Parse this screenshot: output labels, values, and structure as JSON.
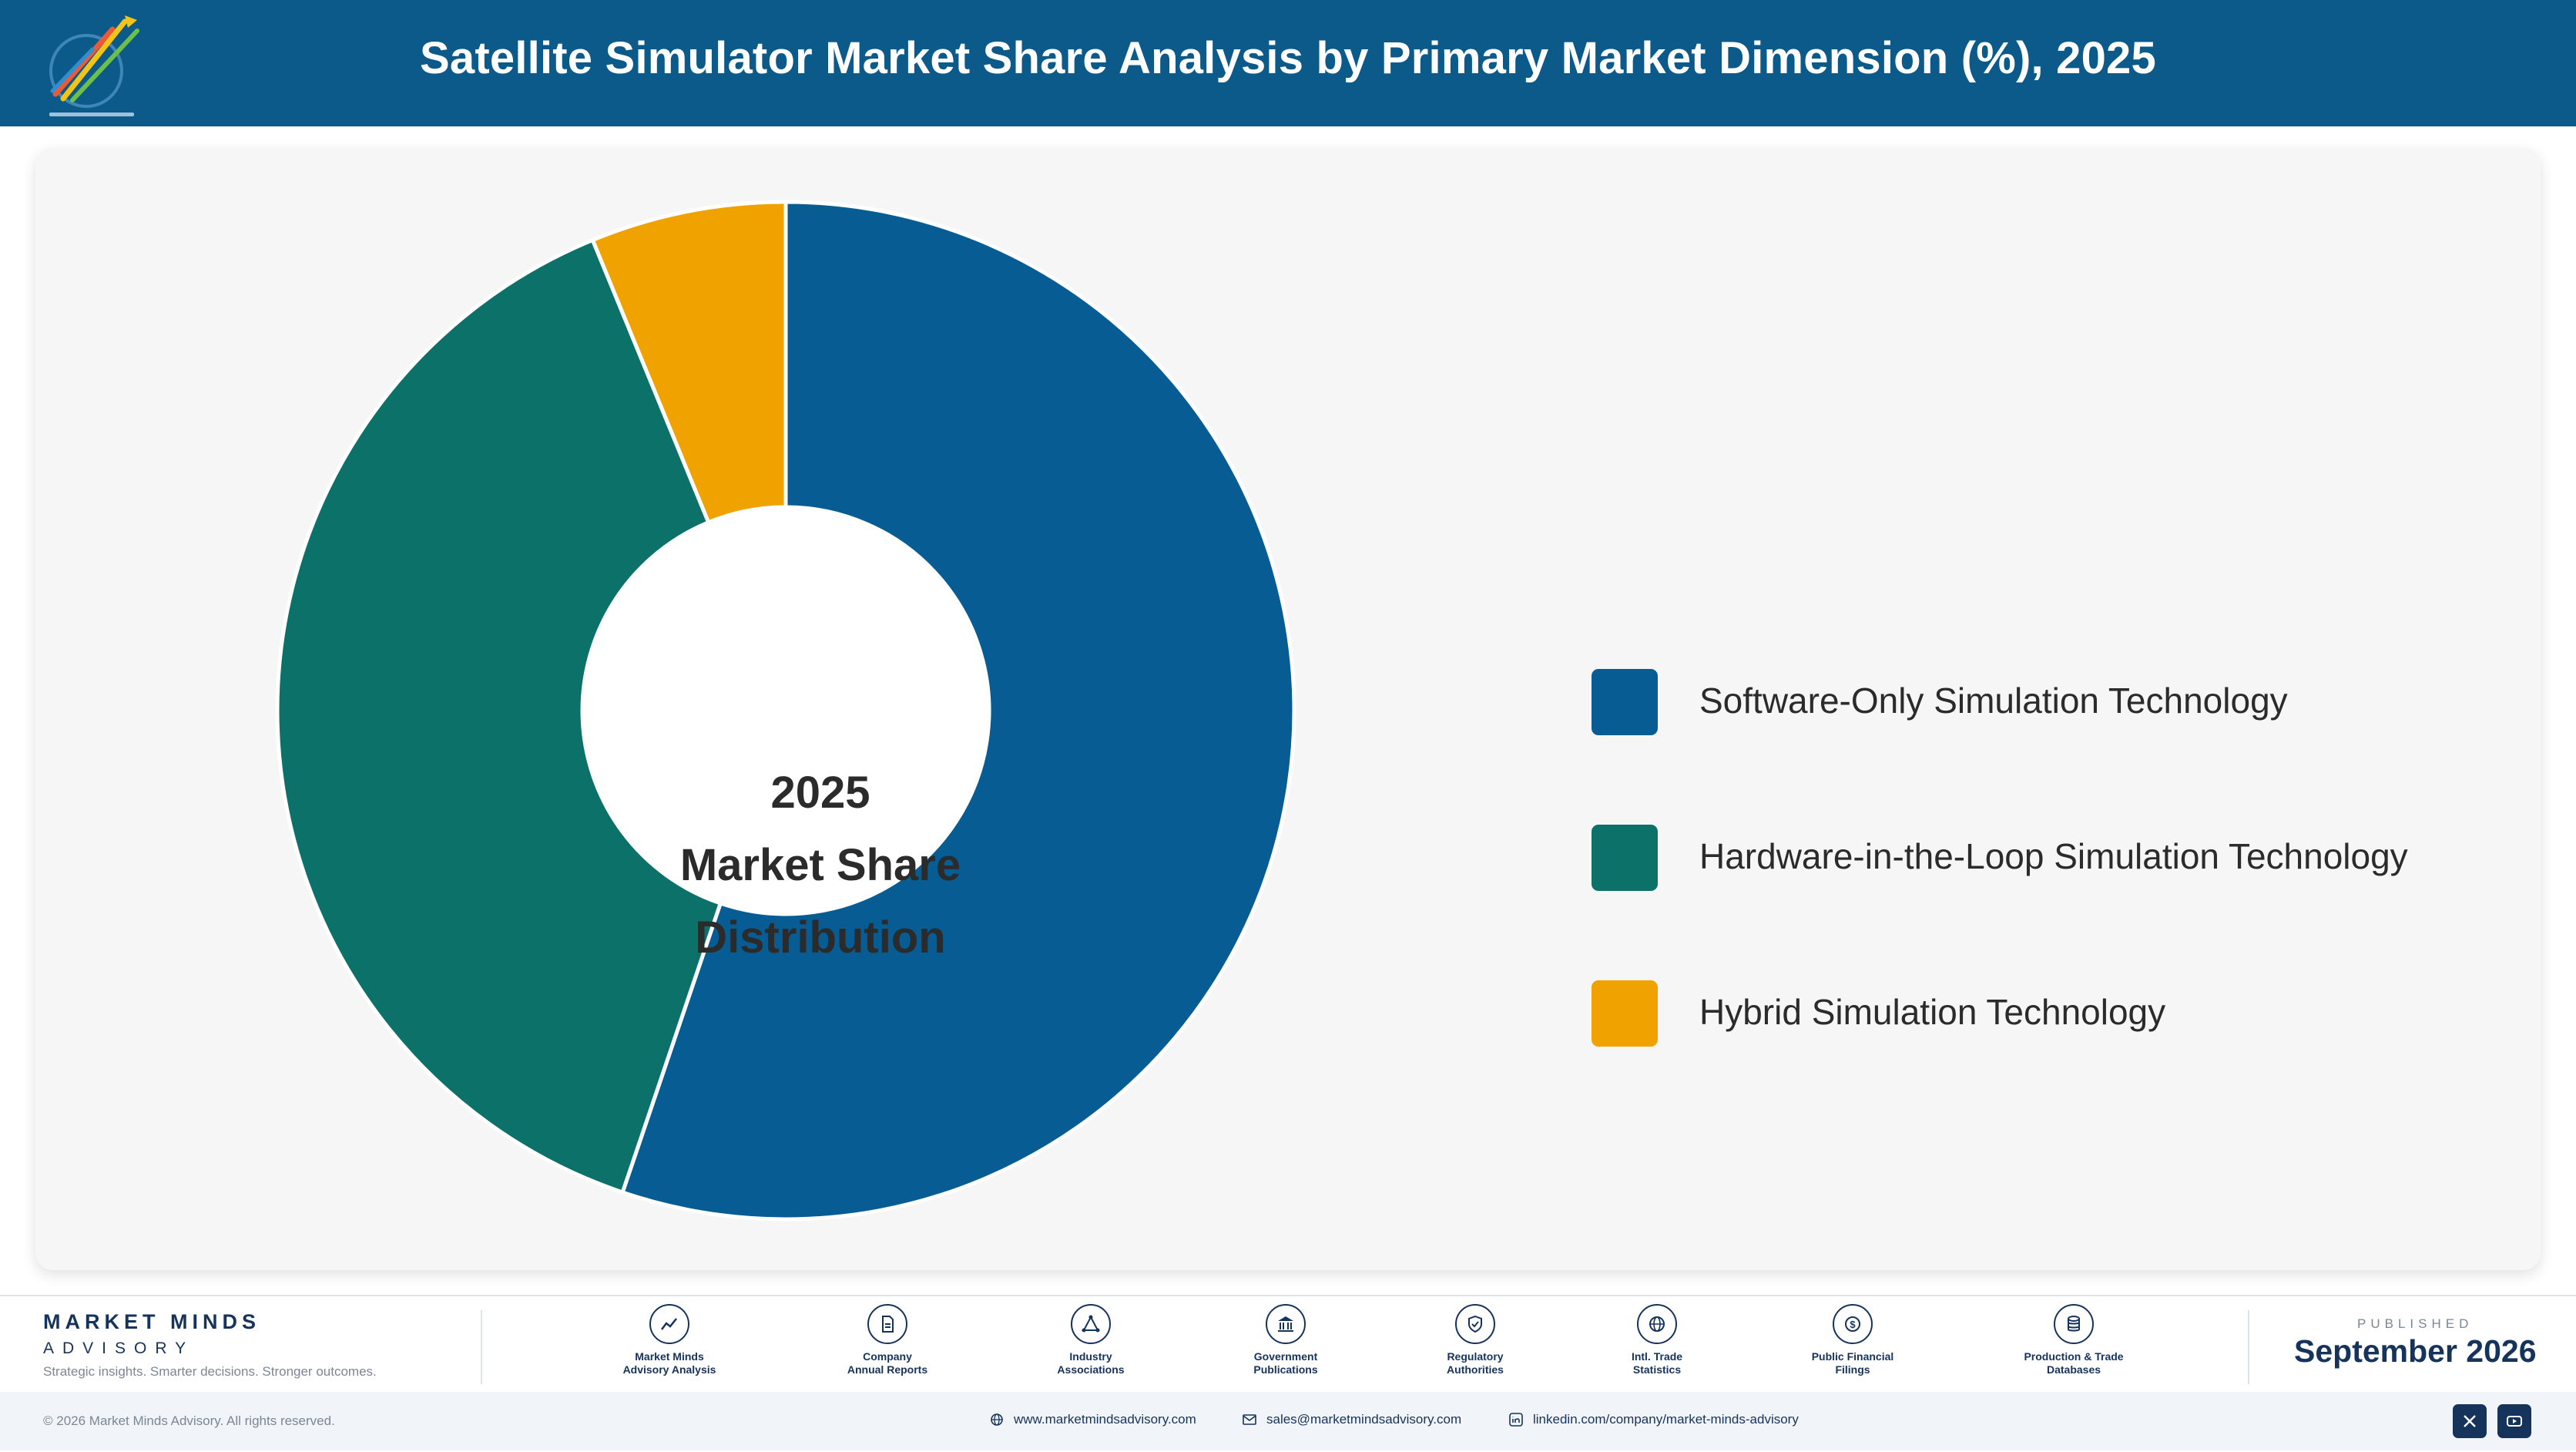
{
  "header": {
    "title": "Satellite Simulator Market Share Analysis by Primary Market Dimension (%), 2025"
  },
  "colors": {
    "header_bg": "#0b5a8a",
    "navy": "#16335c"
  },
  "chart_data": {
    "type": "pie",
    "style": "donut",
    "title": "Satellite Simulator Market Share Analysis by Primary Market Dimension (%), 2025",
    "center_label": [
      "2025",
      "Market Share",
      "Distribution"
    ],
    "legend_position": "right",
    "categories": [
      "Software-Only Simulation Technology",
      "Hardware-in-the-Loop Simulation Technology",
      "Hybrid Simulation Technology"
    ],
    "values": [
      55.2,
      38.6,
      6.2
    ],
    "colors": [
      "#075d93",
      "#0c7169",
      "#f0a200"
    ]
  },
  "footer": {
    "brand_name": "MARKET MINDS",
    "brand_sub": "ADVISORY",
    "brand_tagline": "Strategic insights. Smarter decisions. Stronger outcomes.",
    "sources": [
      {
        "icon": "chart-line-icon",
        "label": "Market Minds\nAdvisory Analysis"
      },
      {
        "icon": "document-icon",
        "label": "Company\nAnnual Reports"
      },
      {
        "icon": "network-icon",
        "label": "Industry\nAssociations"
      },
      {
        "icon": "government-building-icon",
        "label": "Government\nPublications"
      },
      {
        "icon": "shield-check-icon",
        "label": "Regulatory\nAuthorities"
      },
      {
        "icon": "globe-icon",
        "label": "Intl. Trade\nStatistics"
      },
      {
        "icon": "dollar-coin-icon",
        "label": "Public Financial\nFilings"
      },
      {
        "icon": "database-icon",
        "label": "Production & Trade\nDatabases"
      }
    ],
    "published_label": "PUBLISHED",
    "published_date": "September 2026",
    "copyright": "© 2026 Market Minds Advisory. All rights reserved.",
    "website": "www.marketmindsadvisory.com",
    "email": "sales@marketmindsadvisory.com",
    "linkedin": "linkedin.com/company/market-minds-advisory"
  }
}
